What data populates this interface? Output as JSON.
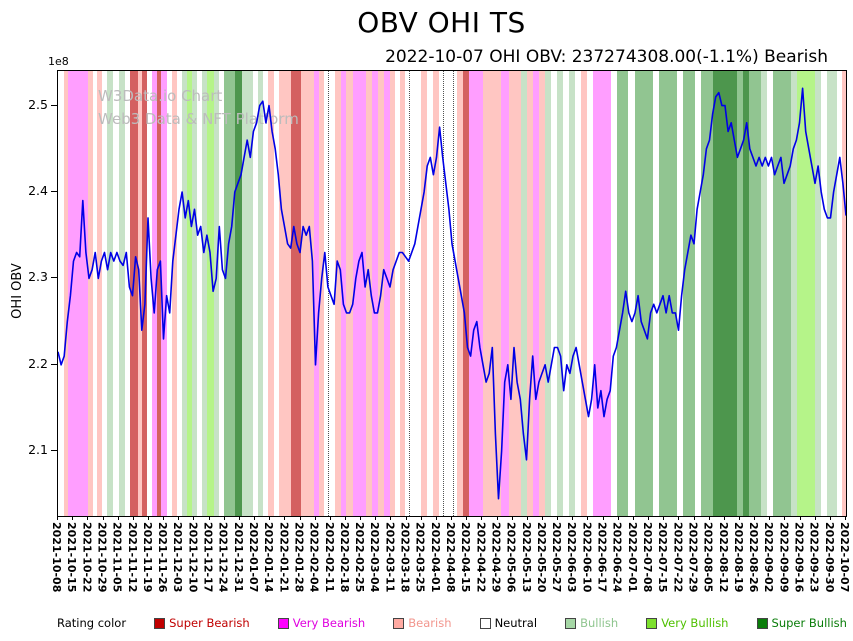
{
  "title": "OBV OHI TS",
  "subtitle": "2022-10-07 OHI OBV: 237274308.00(-1.1%) Bearish",
  "watermark": {
    "line1": "W3Data.io Chart",
    "line2": "Web3 Data & NFT Platform"
  },
  "axis": {
    "y_label": "OHI OBV",
    "y_multiplier": "1e8"
  },
  "legend": {
    "label": "Rating color",
    "items": [
      {
        "label": "Super Bearish",
        "swatch": "#c00000",
        "text": "#c00000"
      },
      {
        "label": "Very Bearish",
        "swatch": "#ff00ff",
        "text": "#e000e0"
      },
      {
        "label": "Bearish",
        "swatch": "#ffaaa2",
        "text": "#f2968e"
      },
      {
        "label": "Neutral",
        "swatch": "#ffffff",
        "text": "#000000"
      },
      {
        "label": "Bullish",
        "swatch": "#a6d7a6",
        "text": "#8fc58f"
      },
      {
        "label": "Very Bullish",
        "swatch": "#7de02e",
        "text": "#4fc000"
      },
      {
        "label": "Super Bullish",
        "swatch": "#0a7d0a",
        "text": "#0a7d0a"
      }
    ]
  },
  "chart_data": {
    "type": "line",
    "title": "OBV OHI TS",
    "ylabel": "OHI OBV",
    "unit": "1e8",
    "ylim": [
      2.025,
      2.54
    ],
    "y_ticks": [
      2.1,
      2.2,
      2.3,
      2.4,
      2.5
    ],
    "x_start": "2021-10-08",
    "x_end": "2022-10-07",
    "x_tick_labels": [
      "2021-10-08",
      "2021-10-15",
      "2021-10-22",
      "2021-10-29",
      "2021-11-05",
      "2021-11-12",
      "2021-11-19",
      "2021-11-26",
      "2021-12-03",
      "2021-12-10",
      "2021-12-17",
      "2021-12-24",
      "2021-12-31",
      "2022-01-07",
      "2022-01-14",
      "2022-01-21",
      "2022-01-28",
      "2022-02-04",
      "2022-02-11",
      "2022-02-18",
      "2022-02-25",
      "2022-03-04",
      "2022-03-11",
      "2022-03-18",
      "2022-03-25",
      "2022-04-01",
      "2022-04-08",
      "2022-04-15",
      "2022-04-22",
      "2022-04-29",
      "2022-05-06",
      "2022-05-13",
      "2022-05-20",
      "2022-05-27",
      "2022-06-03",
      "2022-06-10",
      "2022-06-17",
      "2022-06-24",
      "2022-07-01",
      "2022-07-08",
      "2022-07-15",
      "2022-07-22",
      "2022-07-29",
      "2022-08-05",
      "2022-08-12",
      "2022-08-19",
      "2022-08-26",
      "2022-09-02",
      "2022-09-09",
      "2022-09-16",
      "2022-09-23",
      "2022-09-30",
      "2022-10-07"
    ],
    "line_color": "#0000e6",
    "series": [
      {
        "name": "OHI OBV",
        "last_value": 237274308.0,
        "last_change_pct": -1.1,
        "last_rating": "Bearish",
        "values": [
          2.215,
          2.2,
          2.21,
          2.25,
          2.28,
          2.32,
          2.33,
          2.325,
          2.39,
          2.33,
          2.3,
          2.31,
          2.33,
          2.3,
          2.32,
          2.33,
          2.31,
          2.33,
          2.32,
          2.33,
          2.32,
          2.315,
          2.33,
          2.29,
          2.28,
          2.325,
          2.31,
          2.24,
          2.27,
          2.37,
          2.3,
          2.26,
          2.31,
          2.32,
          2.23,
          2.28,
          2.26,
          2.32,
          2.35,
          2.38,
          2.4,
          2.37,
          2.39,
          2.36,
          2.38,
          2.35,
          2.36,
          2.33,
          2.35,
          2.33,
          2.285,
          2.3,
          2.36,
          2.31,
          2.3,
          2.34,
          2.36,
          2.4,
          2.41,
          2.42,
          2.44,
          2.46,
          2.44,
          2.47,
          2.48,
          2.5,
          2.505,
          2.48,
          2.5,
          2.47,
          2.45,
          2.42,
          2.38,
          2.36,
          2.34,
          2.335,
          2.36,
          2.34,
          2.33,
          2.36,
          2.35,
          2.36,
          2.32,
          2.2,
          2.26,
          2.3,
          2.33,
          2.29,
          2.28,
          2.27,
          2.32,
          2.31,
          2.27,
          2.26,
          2.26,
          2.27,
          2.3,
          2.32,
          2.33,
          2.29,
          2.31,
          2.28,
          2.26,
          2.26,
          2.28,
          2.31,
          2.3,
          2.29,
          2.31,
          2.32,
          2.33,
          2.33,
          2.325,
          2.32,
          2.33,
          2.34,
          2.36,
          2.38,
          2.4,
          2.43,
          2.44,
          2.42,
          2.44,
          2.475,
          2.44,
          2.41,
          2.38,
          2.34,
          2.32,
          2.3,
          2.28,
          2.26,
          2.22,
          2.21,
          2.24,
          2.25,
          2.22,
          2.2,
          2.18,
          2.19,
          2.22,
          2.12,
          2.045,
          2.1,
          2.18,
          2.2,
          2.16,
          2.22,
          2.18,
          2.16,
          2.12,
          2.09,
          2.16,
          2.21,
          2.16,
          2.18,
          2.19,
          2.2,
          2.18,
          2.2,
          2.22,
          2.22,
          2.21,
          2.17,
          2.2,
          2.19,
          2.21,
          2.22,
          2.2,
          2.18,
          2.16,
          2.14,
          2.16,
          2.2,
          2.15,
          2.17,
          2.14,
          2.16,
          2.17,
          2.21,
          2.22,
          2.24,
          2.26,
          2.285,
          2.26,
          2.25,
          2.26,
          2.28,
          2.25,
          2.24,
          2.23,
          2.26,
          2.27,
          2.26,
          2.27,
          2.28,
          2.26,
          2.28,
          2.26,
          2.26,
          2.24,
          2.28,
          2.31,
          2.33,
          2.35,
          2.34,
          2.38,
          2.4,
          2.42,
          2.45,
          2.46,
          2.49,
          2.51,
          2.515,
          2.5,
          2.5,
          2.47,
          2.48,
          2.46,
          2.44,
          2.45,
          2.46,
          2.48,
          2.45,
          2.44,
          2.43,
          2.44,
          2.43,
          2.44,
          2.43,
          2.44,
          2.42,
          2.43,
          2.44,
          2.41,
          2.42,
          2.43,
          2.45,
          2.46,
          2.48,
          2.52,
          2.47,
          2.45,
          2.43,
          2.41,
          2.43,
          2.4,
          2.38,
          2.37,
          2.37,
          2.4,
          2.42,
          2.44,
          2.41,
          2.3727
        ]
      }
    ],
    "band_colors": {
      "sb": "rgba(195,35,35,0.72)",
      "vb": "rgba(255,0,255,0.38)",
      "b": "rgba(255,120,110,0.42)",
      "bu": "rgba(130,190,130,0.45)",
      "bu2": "rgba(55,150,55,0.55)",
      "vbu": "rgba(120,235,40,0.55)",
      "sbu": "rgba(8,110,8,0.72)"
    },
    "bands": [
      [
        0.008,
        0.013,
        "b"
      ],
      [
        0.013,
        0.038,
        "vb"
      ],
      [
        0.038,
        0.044,
        "b"
      ],
      [
        0.049,
        0.056,
        "b"
      ],
      [
        0.062,
        0.07,
        "bu"
      ],
      [
        0.077,
        0.085,
        "bu"
      ],
      [
        0.091,
        0.102,
        "sb"
      ],
      [
        0.102,
        0.107,
        "b"
      ],
      [
        0.107,
        0.113,
        "sb"
      ],
      [
        0.119,
        0.126,
        "vb"
      ],
      [
        0.126,
        0.131,
        "sb"
      ],
      [
        0.131,
        0.138,
        "vb"
      ],
      [
        0.145,
        0.151,
        "b"
      ],
      [
        0.157,
        0.164,
        "bu"
      ],
      [
        0.164,
        0.17,
        "vbu"
      ],
      [
        0.17,
        0.176,
        "bu"
      ],
      [
        0.183,
        0.189,
        "bu"
      ],
      [
        0.189,
        0.198,
        "vbu"
      ],
      [
        0.198,
        0.204,
        "bu"
      ],
      [
        0.211,
        0.225,
        "bu2"
      ],
      [
        0.225,
        0.233,
        "sbu"
      ],
      [
        0.233,
        0.247,
        "bu"
      ],
      [
        0.254,
        0.26,
        "bu"
      ],
      [
        0.266,
        0.274,
        "b"
      ],
      [
        0.28,
        0.296,
        "b"
      ],
      [
        0.296,
        0.308,
        "sb"
      ],
      [
        0.308,
        0.325,
        "b"
      ],
      [
        0.325,
        0.331,
        "vb"
      ],
      [
        0.331,
        0.338,
        "b"
      ],
      [
        0.352,
        0.359,
        "b"
      ],
      [
        0.359,
        0.365,
        "vb"
      ],
      [
        0.365,
        0.374,
        "b"
      ],
      [
        0.374,
        0.391,
        "vb"
      ],
      [
        0.391,
        0.398,
        "b"
      ],
      [
        0.398,
        0.406,
        "vb"
      ],
      [
        0.406,
        0.414,
        "b"
      ],
      [
        0.414,
        0.421,
        "vb"
      ],
      [
        0.421,
        0.428,
        "b"
      ],
      [
        0.434,
        0.44,
        "b"
      ],
      [
        0.461,
        0.468,
        "b"
      ],
      [
        0.476,
        0.483,
        "b"
      ],
      [
        0.506,
        0.514,
        "b"
      ],
      [
        0.514,
        0.522,
        "sb"
      ],
      [
        0.522,
        0.539,
        "vb"
      ],
      [
        0.539,
        0.562,
        "b"
      ],
      [
        0.562,
        0.572,
        "vb"
      ],
      [
        0.572,
        0.588,
        "b"
      ],
      [
        0.588,
        0.595,
        "bu"
      ],
      [
        0.595,
        0.603,
        "b"
      ],
      [
        0.603,
        0.61,
        "vb"
      ],
      [
        0.61,
        0.618,
        "b"
      ],
      [
        0.618,
        0.626,
        "bu"
      ],
      [
        0.633,
        0.641,
        "bu"
      ],
      [
        0.648,
        0.656,
        "bu"
      ],
      [
        0.664,
        0.671,
        "b"
      ],
      [
        0.679,
        0.702,
        "vb"
      ],
      [
        0.709,
        0.724,
        "bu2"
      ],
      [
        0.732,
        0.755,
        "bu2"
      ],
      [
        0.763,
        0.786,
        "bu2"
      ],
      [
        0.793,
        0.808,
        "bu2"
      ],
      [
        0.816,
        0.831,
        "bu2"
      ],
      [
        0.831,
        0.862,
        "sbu"
      ],
      [
        0.862,
        0.869,
        "bu2"
      ],
      [
        0.869,
        0.877,
        "sbu"
      ],
      [
        0.877,
        0.892,
        "bu2"
      ],
      [
        0.892,
        0.9,
        "bu"
      ],
      [
        0.907,
        0.93,
        "bu2"
      ],
      [
        0.93,
        0.938,
        "bu"
      ],
      [
        0.938,
        0.961,
        "vbu"
      ],
      [
        0.961,
        0.968,
        "bu"
      ],
      [
        0.976,
        0.988,
        "bu"
      ],
      [
        0.995,
        1.0,
        "b"
      ]
    ],
    "legend_position": "bottom",
    "grid": "dotted-vertical-on-neutral-days"
  }
}
